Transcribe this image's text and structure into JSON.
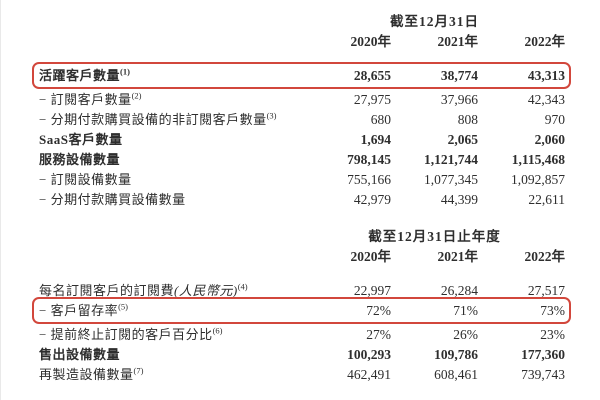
{
  "page": {
    "background": "#ffffff",
    "text_color": "#2e2e2e",
    "highlight_color": "#d2473c"
  },
  "table1": {
    "period_header": "截至12月31日",
    "years": [
      "2020年",
      "2021年",
      "2022年"
    ],
    "rows": [
      {
        "label": "活躍客戶數量",
        "sup": "(1)",
        "values": [
          "28,655",
          "38,774",
          "43,313"
        ]
      },
      {
        "label": "− 訂閱客戶數量",
        "sup": "(2)",
        "values": [
          "27,975",
          "37,966",
          "42,343"
        ]
      },
      {
        "label": "− 分期付款購買設備的非訂閱客戶數量",
        "sup": "(3)",
        "values": [
          "680",
          "808",
          "970"
        ]
      },
      {
        "label": "SaaS客戶數量",
        "sup": "",
        "values": [
          "1,694",
          "2,065",
          "2,060"
        ]
      },
      {
        "label": "服務設備數量",
        "sup": "",
        "values": [
          "798,145",
          "1,121,744",
          "1,115,468"
        ]
      },
      {
        "label": "− 訂閱設備數量",
        "sup": "",
        "values": [
          "755,166",
          "1,077,345",
          "1,092,857"
        ]
      },
      {
        "label": "− 分期付款購買設備數量",
        "sup": "",
        "values": [
          "42,979",
          "44,399",
          "22,611"
        ]
      }
    ]
  },
  "table2": {
    "period_header": "截至12月31日止年度",
    "years": [
      "2020年",
      "2021年",
      "2022年"
    ],
    "rows": [
      {
        "label": "每名訂閱客戶的訂閱費",
        "label_italic": "(人民幣元)",
        "sup": "(4)",
        "values": [
          "22,997",
          "26,284",
          "27,517"
        ]
      },
      {
        "label": "− 客戶留存率",
        "sup": "(5)",
        "values": [
          "72%",
          "71%",
          "73%"
        ]
      },
      {
        "label": "− 提前終止訂閱的客戶百分比",
        "sup": "(6)",
        "values": [
          "27%",
          "26%",
          "23%"
        ]
      },
      {
        "label": "售出設備數量",
        "sup": "",
        "values": [
          "100,293",
          "109,786",
          "177,360"
        ]
      },
      {
        "label": "再製造設備數量",
        "sup": "(7)",
        "values": [
          "462,491",
          "608,461",
          "739,743"
        ]
      }
    ]
  }
}
